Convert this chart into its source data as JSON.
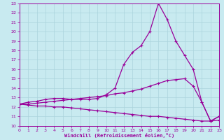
{
  "xlabel": "Windchill (Refroidissement éolien,°C)",
  "bg_color": "#c8eaf0",
  "grid_color": "#c0dde5",
  "line_color": "#990099",
  "xlim": [
    0,
    23
  ],
  "ylim": [
    10,
    23
  ],
  "xticks": [
    0,
    1,
    2,
    3,
    4,
    5,
    6,
    7,
    8,
    9,
    10,
    11,
    12,
    13,
    14,
    15,
    16,
    17,
    18,
    19,
    20,
    21,
    22,
    23
  ],
  "yticks": [
    10,
    11,
    12,
    13,
    14,
    15,
    16,
    17,
    18,
    19,
    20,
    21,
    22,
    23
  ],
  "line1_x": [
    0,
    1,
    2,
    3,
    4,
    5,
    6,
    7,
    8,
    9,
    10,
    11,
    12,
    13,
    14,
    15,
    16,
    17,
    18,
    19,
    20,
    21,
    22,
    23
  ],
  "line1_y": [
    12.3,
    12.5,
    12.6,
    12.8,
    12.9,
    12.9,
    12.8,
    12.8,
    12.8,
    12.9,
    13.3,
    14.0,
    16.5,
    17.8,
    18.5,
    20.0,
    23.0,
    21.3,
    19.0,
    17.5,
    16.0,
    12.5,
    10.5,
    11.0
  ],
  "line2_x": [
    0,
    1,
    2,
    3,
    4,
    5,
    6,
    7,
    8,
    9,
    10,
    11,
    12,
    13,
    14,
    15,
    16,
    17,
    18,
    19,
    20,
    21,
    22,
    23
  ],
  "line2_y": [
    12.3,
    12.3,
    12.4,
    12.5,
    12.6,
    12.7,
    12.8,
    12.9,
    13.0,
    13.1,
    13.2,
    13.4,
    13.5,
    13.7,
    13.9,
    14.2,
    14.5,
    14.8,
    14.9,
    15.0,
    14.2,
    12.5,
    10.5,
    11.0
  ],
  "line3_x": [
    0,
    1,
    2,
    3,
    4,
    5,
    6,
    7,
    8,
    9,
    10,
    11,
    12,
    13,
    14,
    15,
    16,
    17,
    18,
    19,
    20,
    21,
    22,
    23
  ],
  "line3_y": [
    12.3,
    12.2,
    12.1,
    12.1,
    12.0,
    12.0,
    11.9,
    11.8,
    11.7,
    11.6,
    11.5,
    11.4,
    11.3,
    11.2,
    11.1,
    11.0,
    11.0,
    10.9,
    10.8,
    10.7,
    10.6,
    10.5,
    10.5,
    10.6
  ]
}
